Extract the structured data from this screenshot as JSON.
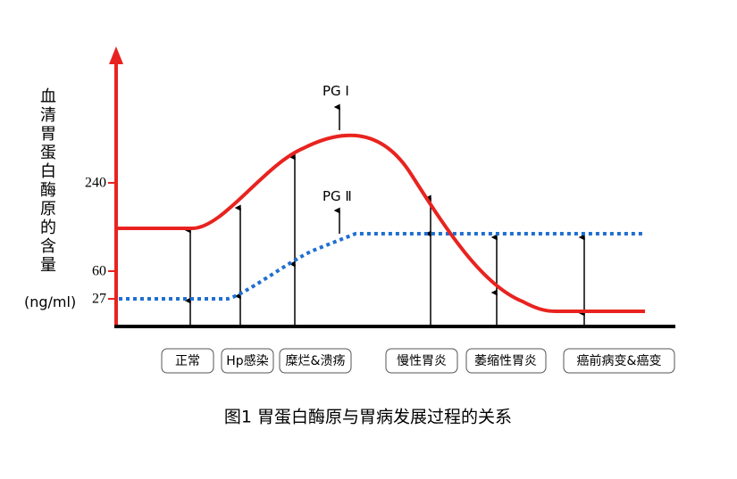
{
  "y_axis_label": "血清胃蛋白酶原的含量",
  "unit": "(ng/ml)",
  "ticks": [
    240,
    60,
    27
  ],
  "curve_labels": [
    "PG Ⅰ",
    "PG Ⅱ"
  ],
  "stages": [
    "正常",
    "Hp感染",
    "糜烂&溃疡",
    "慢性胃炎",
    "萎缩性胃炎",
    "癌前病变&癌变"
  ],
  "caption": "图1  胃蛋白酶原与胃病发展过程的关系"
}
